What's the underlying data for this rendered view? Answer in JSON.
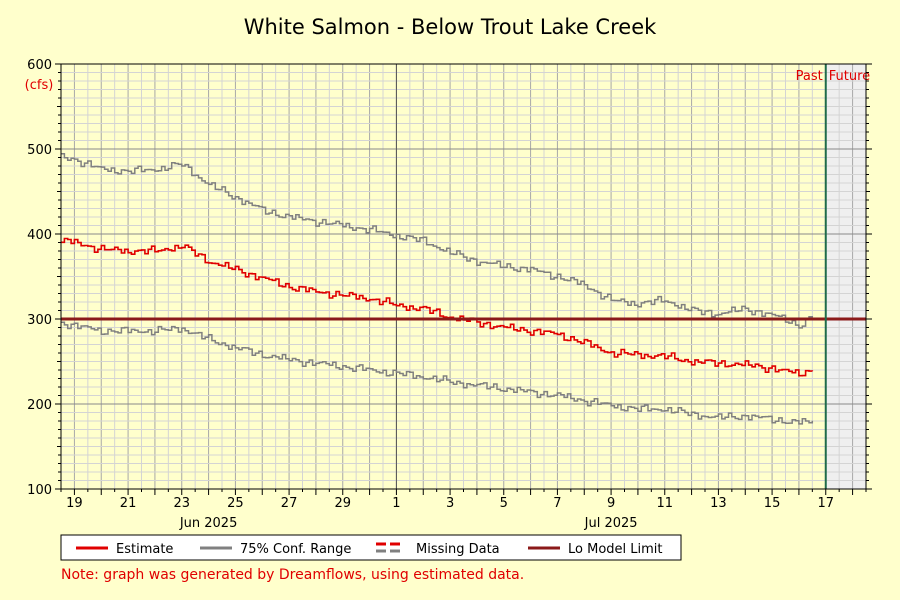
{
  "chart_data": {
    "type": "line",
    "title": "White Salmon - Below Trout Lake Creek",
    "ylabel": "(cfs)",
    "xlabel": "",
    "ylim": [
      100,
      600
    ],
    "y_ticks": [
      100,
      200,
      300,
      400,
      500,
      600
    ],
    "x_range_days": [
      "2025-06-18T12:00",
      "2025-07-18T12:00"
    ],
    "x_tick_labels": [
      {
        "date": "2025-06-19",
        "label": "19"
      },
      {
        "date": "2025-06-21",
        "label": "21"
      },
      {
        "date": "2025-06-23",
        "label": "23"
      },
      {
        "date": "2025-06-25",
        "label": "25"
      },
      {
        "date": "2025-06-27",
        "label": "27"
      },
      {
        "date": "2025-06-29",
        "label": "29"
      },
      {
        "date": "2025-07-01",
        "label": "1"
      },
      {
        "date": "2025-07-03",
        "label": "3"
      },
      {
        "date": "2025-07-05",
        "label": "5"
      },
      {
        "date": "2025-07-07",
        "label": "7"
      },
      {
        "date": "2025-07-09",
        "label": "9"
      },
      {
        "date": "2025-07-11",
        "label": "11"
      },
      {
        "date": "2025-07-13",
        "label": "13"
      },
      {
        "date": "2025-07-15",
        "label": "15"
      },
      {
        "date": "2025-07-17",
        "label": "17"
      }
    ],
    "month_labels": [
      {
        "date": "2025-06-24",
        "label": "Jun 2025"
      },
      {
        "date": "2025-07-09",
        "label": "Jul 2025"
      }
    ],
    "month_divider_date": "2025-07-01",
    "now_date": "2025-07-17T00:00",
    "now_labels": {
      "past": "Past",
      "future": "Future"
    },
    "lo_model_limit": 300,
    "grid": true,
    "legend_position": "bottom",
    "x": [
      "2025-06-18T12:00",
      "2025-06-19",
      "2025-06-20",
      "2025-06-21",
      "2025-06-22",
      "2025-06-23",
      "2025-06-24",
      "2025-06-25",
      "2025-06-26",
      "2025-06-27",
      "2025-06-28",
      "2025-06-29",
      "2025-06-30",
      "2025-07-01",
      "2025-07-02",
      "2025-07-03",
      "2025-07-04",
      "2025-07-05",
      "2025-07-06",
      "2025-07-07",
      "2025-07-08",
      "2025-07-09",
      "2025-07-10",
      "2025-07-11",
      "2025-07-12",
      "2025-07-13",
      "2025-07-14",
      "2025-07-15",
      "2025-07-15T12:00",
      "2025-07-16",
      "2025-07-16T12:00"
    ],
    "series": [
      {
        "name": "Estimate",
        "color": "#e00000",
        "values": [
          392,
          390,
          382,
          380,
          380,
          386,
          368,
          358,
          348,
          338,
          332,
          328,
          324,
          316,
          312,
          302,
          296,
          290,
          286,
          282,
          272,
          260,
          258,
          256,
          250,
          248,
          246,
          242,
          238,
          236,
          240
        ]
      },
      {
        "name": "75% Conf. Range",
        "color": "#808080",
        "values": [
          490,
          488,
          476,
          474,
          476,
          482,
          458,
          443,
          428,
          420,
          415,
          410,
          405,
          398,
          392,
          378,
          368,
          362,
          358,
          350,
          340,
          322,
          318,
          322,
          310,
          306,
          312,
          304,
          300,
          292,
          302
        ]
      },
      {
        "name": "75% Conf. Range",
        "color": "#808080",
        "values": [
          296,
          292,
          286,
          286,
          286,
          289,
          276,
          266,
          258,
          252,
          248,
          244,
          240,
          236,
          232,
          226,
          222,
          218,
          214,
          210,
          204,
          198,
          194,
          194,
          188,
          184,
          186,
          182,
          180,
          178,
          180
        ]
      }
    ],
    "legend": [
      {
        "label": "Estimate",
        "color": "#e00000",
        "style": "solid"
      },
      {
        "label": "75% Conf. Range",
        "color": "#808080",
        "style": "solid"
      },
      {
        "label": "Missing Data",
        "color": "#e00000",
        "color2": "#808080",
        "style": "dashed"
      },
      {
        "label": "Lo Model Limit",
        "color": "#8b1a1a",
        "style": "solid"
      }
    ],
    "note": "Note: graph was generated by Dreamflows, using estimated data."
  }
}
